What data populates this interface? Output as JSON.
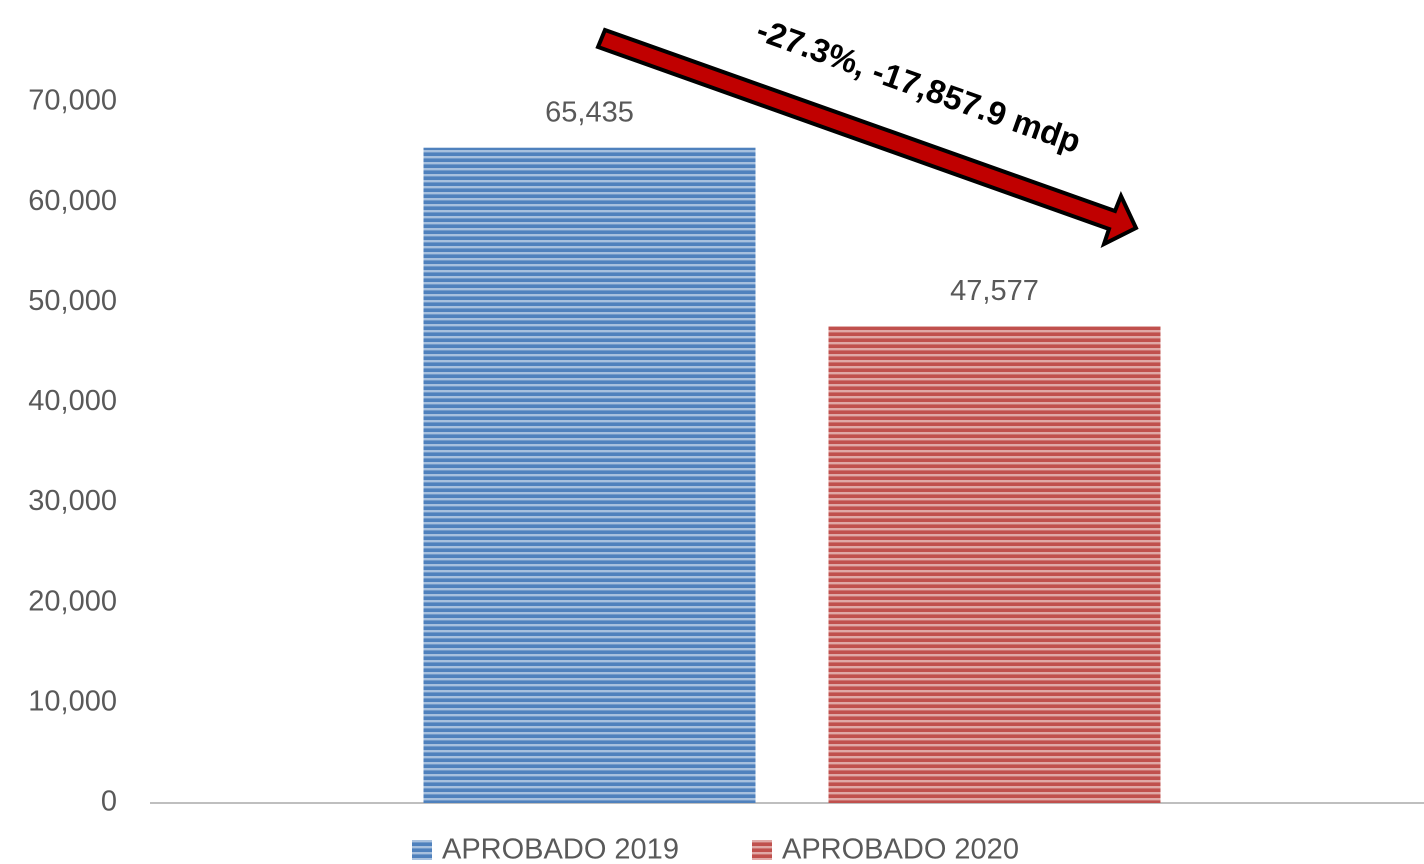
{
  "chart_data": {
    "type": "bar",
    "categories": [
      null
    ],
    "series": [
      {
        "name": "APROBADO 2019",
        "color": "#4f81bd",
        "values": [
          65435
        ],
        "value_labels": [
          "65,435"
        ]
      },
      {
        "name": "APROBADO 2020",
        "color": "#c0504d",
        "values": [
          47577
        ],
        "value_labels": [
          "47,577"
        ]
      }
    ],
    "ylim": [
      0,
      70000
    ],
    "yticks": [
      0,
      {
        "value": 10000,
        "label": "10,000"
      },
      {
        "value": 20000,
        "label": "20,000"
      },
      {
        "value": 30000,
        "label": "30,000"
      },
      {
        "value": 40000,
        "label": "40,000"
      },
      {
        "value": 50000,
        "label": "50,000"
      },
      {
        "value": 60000,
        "label": "60,000"
      },
      {
        "value": 70000,
        "label": "70,000"
      }
    ],
    "annotation": "-27.3%, -17,857.9 mdp",
    "legend": "bottom"
  }
}
